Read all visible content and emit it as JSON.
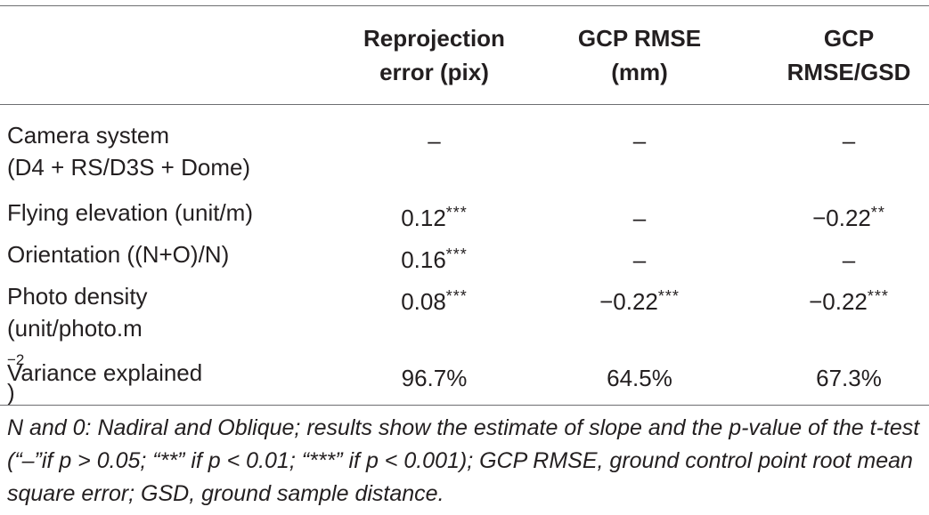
{
  "headers": {
    "col1_line1": "Reprojection",
    "col1_line2": "error (pix)",
    "col2_line1": "GCP RMSE",
    "col2_line2": "(mm)",
    "col3_line1": "GCP",
    "col3_line2": "RMSE/GSD"
  },
  "rows": [
    {
      "label_line1": "Camera system",
      "label_line2": "(D4 + RS/D3S + Dome)",
      "reproj": "–",
      "reproj_stars": "",
      "rmse": "–",
      "rmse_stars": "",
      "rmse_gsd": "–",
      "rmse_gsd_stars": ""
    },
    {
      "label_line1": "Flying elevation (unit/m)",
      "reproj": "0.12",
      "reproj_stars": "***",
      "rmse": "–",
      "rmse_stars": "",
      "rmse_gsd": "−0.22",
      "rmse_gsd_stars": "**"
    },
    {
      "label_line1": "Orientation ((N+O)/N)",
      "reproj": "0.16",
      "reproj_stars": "***",
      "rmse": "–",
      "rmse_stars": "",
      "rmse_gsd": "–",
      "rmse_gsd_stars": ""
    },
    {
      "label_line1": "Photo density",
      "label_line2_pre": "(unit/photo.m",
      "label_line2_sup": "−2",
      "label_line2_post": ")",
      "reproj": "0.08",
      "reproj_stars": "***",
      "rmse": "−0.22",
      "rmse_stars": "***",
      "rmse_gsd": "−0.22",
      "rmse_gsd_stars": "***"
    },
    {
      "label_line1": "Variance explained",
      "reproj": "96.7%",
      "reproj_stars": "",
      "rmse": "64.5%",
      "rmse_stars": "",
      "rmse_gsd": "67.3%",
      "rmse_gsd_stars": ""
    }
  ],
  "footnote": "N and 0: Nadiral and Oblique; results show the estimate of slope and the p-value of the t-test (“–”if p > 0.05; “**” if p < 0.01; “***” if p < 0.001); GCP RMSE, ground control point root mean square error; GSD, ground sample distance."
}
